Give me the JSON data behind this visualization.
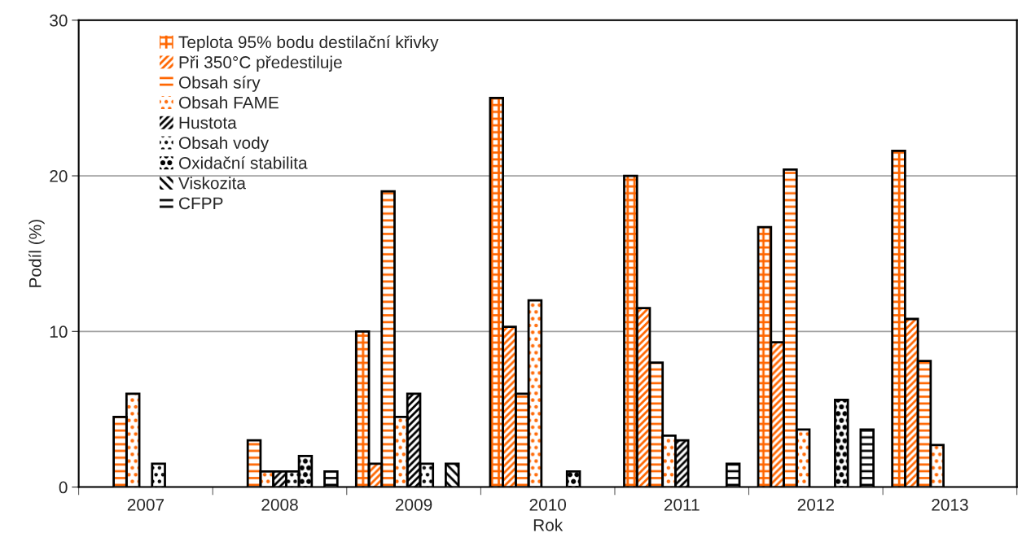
{
  "chart_data": {
    "type": "bar",
    "xlabel": "Rok",
    "ylabel": "Podíl (%)",
    "categories": [
      "2007",
      "2008",
      "2009",
      "2010",
      "2011",
      "2012",
      "2013"
    ],
    "series": [
      {
        "name": "Teplota 95% bodu destilační křivky",
        "color": "#ff6600",
        "values": [
          null,
          null,
          10,
          25,
          20,
          16.7,
          21.6
        ]
      },
      {
        "name": "Při 350°C předestiluje",
        "color": "#ff6600",
        "values": [
          null,
          null,
          1.5,
          10.3,
          11.5,
          9.3,
          10.8
        ]
      },
      {
        "name": "Obsah síry",
        "color": "#ff6600",
        "values": [
          4.5,
          3,
          19,
          6,
          8,
          20.4,
          8.1
        ]
      },
      {
        "name": "Obsah FAME",
        "color": "#ff6600",
        "values": [
          6,
          1,
          4.5,
          12,
          3.3,
          3.7,
          2.7
        ]
      },
      {
        "name": "Hustota",
        "color": "#000000",
        "values": [
          null,
          1,
          6,
          null,
          3,
          null,
          null
        ]
      },
      {
        "name": "Obsah vody",
        "color": "#000000",
        "values": [
          1.5,
          1,
          1.5,
          null,
          null,
          null,
          null
        ]
      },
      {
        "name": "Oxidační stabilita",
        "color": "#000000",
        "values": [
          null,
          2,
          null,
          1,
          null,
          5.6,
          null
        ]
      },
      {
        "name": "Viskozita",
        "color": "#000000",
        "values": [
          null,
          null,
          1.5,
          null,
          null,
          null,
          null
        ]
      },
      {
        "name": "CFPP",
        "color": "#000000",
        "values": [
          null,
          1,
          null,
          null,
          1.5,
          3.7,
          null
        ]
      }
    ],
    "ylim": [
      0,
      30
    ],
    "yticks": [
      0,
      10,
      20,
      30
    ],
    "grid": "y",
    "legend": "top left"
  }
}
